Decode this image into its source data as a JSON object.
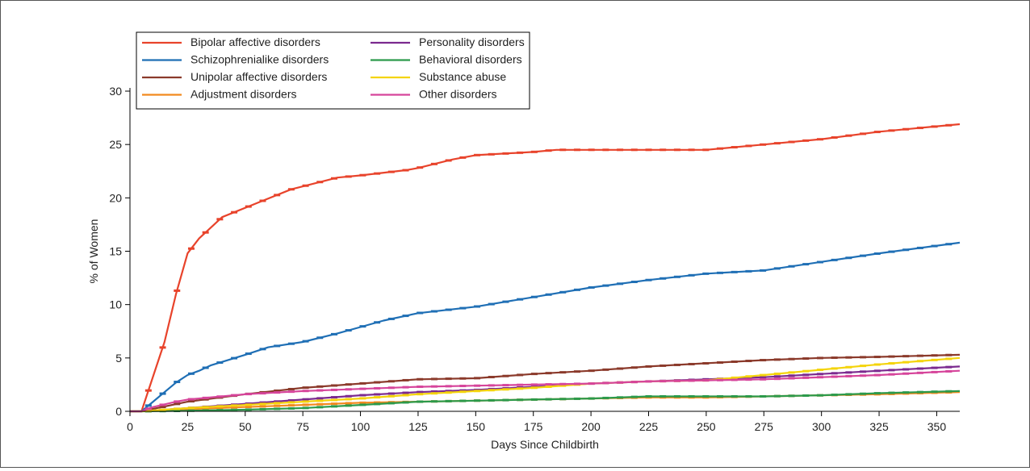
{
  "chart_data": {
    "type": "line",
    "title": "",
    "xlabel": "Days Since Childbirth",
    "ylabel": "% of Women",
    "xlim": [
      0,
      360
    ],
    "ylim": [
      0,
      30
    ],
    "xticks": [
      0,
      25,
      50,
      75,
      100,
      125,
      150,
      175,
      200,
      225,
      250,
      275,
      300,
      325,
      350
    ],
    "yticks": [
      0,
      5,
      10,
      15,
      20,
      25,
      30
    ],
    "grid": false,
    "legend_position": "top-left",
    "series": [
      {
        "name": "Bipolar affective disorders",
        "color": "#e8432b",
        "x": [
          0,
          5,
          15,
          20,
          25,
          30,
          40,
          55,
          70,
          90,
          100,
          120,
          125,
          140,
          150,
          175,
          185,
          200,
          225,
          250,
          275,
          300,
          325,
          360
        ],
        "y": [
          0,
          0,
          6.5,
          11,
          14.8,
          16.2,
          18.2,
          19.5,
          20.8,
          21.9,
          22.1,
          22.6,
          22.8,
          23.6,
          24.0,
          24.3,
          24.5,
          24.5,
          24.5,
          24.5,
          25.0,
          25.5,
          26.2,
          26.9
        ]
      },
      {
        "name": "Schizophrenialike disorders",
        "color": "#1f6fb5",
        "x": [
          0,
          5,
          10,
          15,
          20,
          25,
          30,
          35,
          50,
          60,
          75,
          90,
          100,
          110,
          125,
          150,
          175,
          200,
          225,
          250,
          275,
          300,
          325,
          360
        ],
        "y": [
          0,
          0,
          0.9,
          1.8,
          2.7,
          3.4,
          3.8,
          4.3,
          5.3,
          6.0,
          6.5,
          7.3,
          7.9,
          8.5,
          9.2,
          9.8,
          10.7,
          11.6,
          12.3,
          12.9,
          13.2,
          14.0,
          14.8,
          15.8
        ]
      },
      {
        "name": "Unipolar affective disorders",
        "color": "#8b3a2b",
        "x": [
          0,
          5,
          25,
          50,
          75,
          100,
          125,
          150,
          175,
          200,
          225,
          250,
          275,
          300,
          325,
          360
        ],
        "y": [
          0,
          0,
          0.9,
          1.6,
          2.2,
          2.6,
          3.0,
          3.1,
          3.5,
          3.8,
          4.2,
          4.5,
          4.8,
          5.0,
          5.1,
          5.3
        ]
      },
      {
        "name": "Adjustment disorders",
        "color": "#f28a1f",
        "x": [
          0,
          5,
          25,
          50,
          75,
          100,
          125,
          150,
          175,
          200,
          225,
          250,
          275,
          300,
          325,
          360
        ],
        "y": [
          0,
          0,
          0.2,
          0.4,
          0.6,
          0.8,
          0.9,
          1.0,
          1.1,
          1.2,
          1.3,
          1.3,
          1.4,
          1.5,
          1.6,
          1.8
        ]
      },
      {
        "name": "Personality disorders",
        "color": "#7b2a8f",
        "x": [
          0,
          5,
          25,
          50,
          75,
          100,
          125,
          150,
          175,
          200,
          225,
          250,
          275,
          300,
          325,
          360
        ],
        "y": [
          0,
          0,
          0.3,
          0.7,
          1.1,
          1.5,
          1.8,
          2.0,
          2.3,
          2.6,
          2.8,
          3.0,
          3.2,
          3.5,
          3.8,
          4.2
        ]
      },
      {
        "name": "Behavioral disorders",
        "color": "#2c9a4b",
        "x": [
          0,
          5,
          25,
          50,
          75,
          100,
          125,
          150,
          175,
          200,
          225,
          250,
          275,
          300,
          325,
          360
        ],
        "y": [
          0,
          0,
          0.05,
          0.15,
          0.3,
          0.6,
          0.9,
          1.0,
          1.1,
          1.2,
          1.4,
          1.4,
          1.4,
          1.5,
          1.7,
          1.9
        ]
      },
      {
        "name": "Substance abuse",
        "color": "#f4d40c",
        "x": [
          0,
          5,
          25,
          50,
          75,
          100,
          125,
          150,
          175,
          200,
          225,
          250,
          275,
          300,
          325,
          360
        ],
        "y": [
          0,
          0,
          0.3,
          0.6,
          0.9,
          1.2,
          1.6,
          1.9,
          2.2,
          2.6,
          2.8,
          2.9,
          3.4,
          3.9,
          4.4,
          5.0
        ]
      },
      {
        "name": "Other disorders",
        "color": "#d6459b",
        "x": [
          0,
          5,
          10,
          20,
          25,
          50,
          75,
          100,
          125,
          150,
          175,
          200,
          225,
          250,
          275,
          300,
          325,
          360
        ],
        "y": [
          0,
          0,
          0.4,
          0.9,
          1.1,
          1.6,
          1.9,
          2.1,
          2.3,
          2.4,
          2.5,
          2.6,
          2.8,
          2.9,
          3.0,
          3.2,
          3.4,
          3.8
        ]
      }
    ]
  }
}
